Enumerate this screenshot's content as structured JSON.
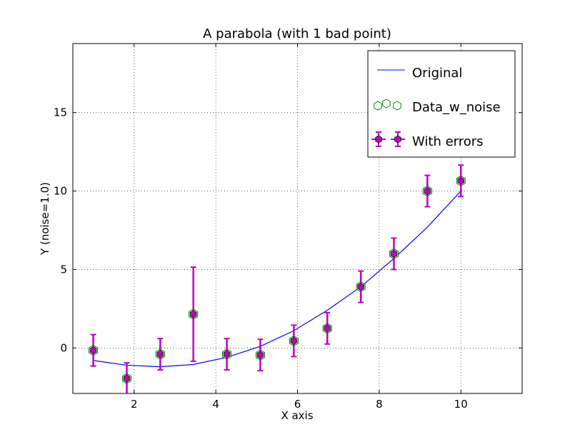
{
  "chart_data": {
    "type": "scatter",
    "title": "A parabola (with 1 bad point)",
    "xlabel": "X axis",
    "ylabel": "Y (noise=1.0)",
    "xlim": [
      0.5,
      11.5
    ],
    "ylim": [
      -2.9,
      19.4
    ],
    "xticks": [
      2,
      4,
      6,
      8,
      10
    ],
    "yticks": [
      0,
      5,
      10,
      15
    ],
    "grid": true,
    "legend_position": "top-right",
    "colors": {
      "original": "#0000ff",
      "data_w_noise_edge": "#008000",
      "with_errors": "#bf00bf"
    },
    "series": [
      {
        "name": "Original",
        "kind": "line",
        "x": [
          1.0,
          1.82,
          2.64,
          3.45,
          4.27,
          5.09,
          5.91,
          6.73,
          7.55,
          8.36,
          9.18,
          10.0
        ],
        "values": [
          -0.8,
          -1.1,
          -1.2,
          -1.05,
          -0.6,
          0.1,
          1.1,
          2.4,
          3.9,
          5.7,
          7.7,
          10.0
        ]
      },
      {
        "name": "Data_w_noise",
        "kind": "markers",
        "marker": "hexagon",
        "x": [
          1.0,
          1.82,
          2.64,
          3.45,
          4.27,
          5.09,
          5.91,
          6.73,
          7.55,
          8.36,
          9.18,
          10.0
        ],
        "values": [
          -0.15,
          -1.95,
          -0.4,
          2.15,
          -0.4,
          -0.45,
          0.45,
          1.25,
          3.9,
          6.0,
          10.0,
          10.65
        ]
      },
      {
        "name": "With errors",
        "kind": "errorbar",
        "marker": "hexagon",
        "x": [
          1.0,
          1.82,
          2.64,
          3.45,
          4.27,
          5.09,
          5.91,
          6.73,
          7.55,
          8.36,
          9.18,
          10.0
        ],
        "values": [
          -0.15,
          -1.95,
          -0.4,
          2.15,
          -0.4,
          -0.45,
          0.45,
          1.25,
          3.9,
          6.0,
          10.0,
          10.65
        ],
        "yerr": [
          1.0,
          1.0,
          1.0,
          3.0,
          1.0,
          1.0,
          1.0,
          1.0,
          1.0,
          1.0,
          1.0,
          1.0
        ]
      }
    ]
  }
}
